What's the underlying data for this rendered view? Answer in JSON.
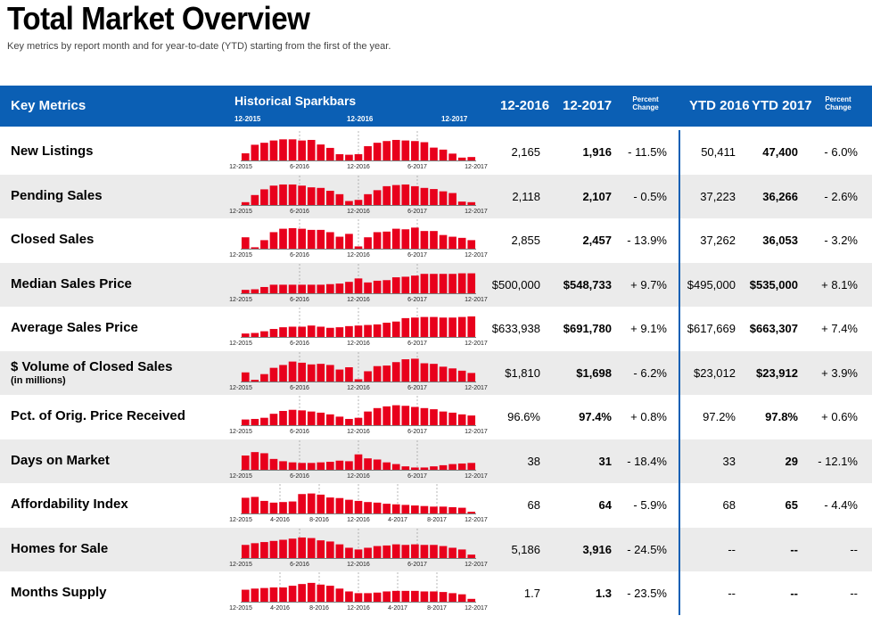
{
  "page": {
    "title": "Total Market Overview",
    "subtitle": "Key metrics by report month and for year-to-date (YTD) starting from the first of the year."
  },
  "header": {
    "key_metrics": "Key Metrics",
    "sparkbars": "Historical Sparkbars",
    "spark_labels": [
      "12-2015",
      "12-2016",
      "12-2017"
    ],
    "col_a": "12-2016",
    "col_b": "12-2017",
    "pct_line1": "Percent",
    "pct_line2": "Change",
    "ytd_a": "YTD 2016",
    "ytd_b": "YTD 2017",
    "ytd_pct_line1": "Percent",
    "ytd_pct_line2": "Change"
  },
  "colors": {
    "header_bg": "#0b5fb4",
    "bar": "#e8001c",
    "alt_row": "#ebebeb"
  },
  "axis_labels": {
    "standard": [
      "12-2015",
      "6-2016",
      "12-2016",
      "6-2017",
      "12-2017"
    ],
    "extended": [
      "12-2015",
      "4-2016",
      "8-2016",
      "12-2016",
      "4-2017",
      "8-2017",
      "12-2017"
    ]
  },
  "rows": [
    {
      "name": "New Listings",
      "sub": "",
      "v2016": "2,165",
      "v2017": "1,916",
      "pct": "- 11.5%",
      "ytd2016": "50,411",
      "ytd2017": "47,400",
      "ytdpct": "- 6.0%",
      "axis": "standard",
      "bars": [
        0.25,
        0.55,
        0.62,
        0.7,
        0.74,
        0.74,
        0.7,
        0.72,
        0.56,
        0.44,
        0.22,
        0.2,
        0.22,
        0.5,
        0.62,
        0.68,
        0.72,
        0.7,
        0.68,
        0.64,
        0.45,
        0.38,
        0.24,
        0.1,
        0.12
      ]
    },
    {
      "name": "Pending Sales",
      "sub": "",
      "v2016": "2,118",
      "v2017": "2,107",
      "pct": "- 0.5%",
      "ytd2016": "37,223",
      "ytd2017": "36,266",
      "ytdpct": "- 2.6%",
      "axis": "standard",
      "bars": [
        0.1,
        0.35,
        0.55,
        0.68,
        0.72,
        0.72,
        0.68,
        0.62,
        0.6,
        0.5,
        0.38,
        0.14,
        0.18,
        0.38,
        0.52,
        0.66,
        0.7,
        0.72,
        0.66,
        0.6,
        0.56,
        0.48,
        0.42,
        0.12,
        0.1
      ]
    },
    {
      "name": "Closed Sales",
      "sub": "",
      "v2016": "2,855",
      "v2017": "2,457",
      "pct": "- 13.9%",
      "ytd2016": "37,262",
      "ytd2017": "36,053",
      "ytdpct": "- 3.2%",
      "axis": "standard",
      "bars": [
        0.4,
        0.05,
        0.3,
        0.58,
        0.7,
        0.72,
        0.7,
        0.66,
        0.66,
        0.58,
        0.42,
        0.52,
        0.08,
        0.4,
        0.58,
        0.6,
        0.7,
        0.68,
        0.74,
        0.62,
        0.62,
        0.48,
        0.42,
        0.38,
        0.3
      ]
    },
    {
      "name": "Median Sales Price",
      "sub": "",
      "v2016": "$500,000",
      "v2017": "$548,733",
      "pct": "+ 9.7%",
      "ytd2016": "$495,000",
      "ytd2017": "$535,000",
      "ytdpct": "+ 8.1%",
      "axis": "standard",
      "bars": [
        0.12,
        0.14,
        0.22,
        0.3,
        0.3,
        0.3,
        0.3,
        0.3,
        0.3,
        0.32,
        0.34,
        0.4,
        0.52,
        0.38,
        0.44,
        0.46,
        0.56,
        0.58,
        0.62,
        0.68,
        0.68,
        0.68,
        0.68,
        0.7,
        0.7
      ]
    },
    {
      "name": "Average Sales Price",
      "sub": "",
      "v2016": "$633,938",
      "v2017": "$691,780",
      "pct": "+ 9.1%",
      "ytd2016": "$617,669",
      "ytd2017": "$663,307",
      "ytdpct": "+ 7.4%",
      "axis": "standard",
      "bars": [
        0.12,
        0.14,
        0.2,
        0.28,
        0.34,
        0.36,
        0.36,
        0.4,
        0.36,
        0.32,
        0.34,
        0.38,
        0.4,
        0.42,
        0.44,
        0.5,
        0.54,
        0.66,
        0.68,
        0.7,
        0.7,
        0.68,
        0.68,
        0.7,
        0.72
      ]
    },
    {
      "name": "$ Volume of Closed Sales",
      "sub": "(in millions)",
      "v2016": "$1,810",
      "v2017": "$1,698",
      "pct": "- 6.2%",
      "ytd2016": "$23,012",
      "ytd2017": "$23,912",
      "ytdpct": "+ 3.9%",
      "axis": "standard",
      "bars": [
        0.32,
        0.06,
        0.26,
        0.48,
        0.58,
        0.7,
        0.66,
        0.6,
        0.62,
        0.58,
        0.42,
        0.5,
        0.08,
        0.36,
        0.54,
        0.56,
        0.68,
        0.78,
        0.8,
        0.64,
        0.62,
        0.52,
        0.46,
        0.38,
        0.3
      ]
    },
    {
      "name": "Pct. of Orig. Price Received",
      "sub": "",
      "v2016": "96.6%",
      "v2017": "97.4%",
      "pct": "+ 0.8%",
      "ytd2016": "97.2%",
      "ytd2017": "97.8%",
      "ytdpct": "+ 0.6%",
      "axis": "standard",
      "bars": [
        0.2,
        0.22,
        0.26,
        0.4,
        0.5,
        0.54,
        0.52,
        0.48,
        0.44,
        0.38,
        0.3,
        0.22,
        0.26,
        0.48,
        0.6,
        0.66,
        0.7,
        0.68,
        0.64,
        0.6,
        0.56,
        0.48,
        0.44,
        0.38,
        0.34
      ]
    },
    {
      "name": "Days on Market",
      "sub": "",
      "v2016": "38",
      "v2017": "31",
      "pct": "- 18.4%",
      "ytd2016": "33",
      "ytd2017": "29",
      "ytdpct": "- 12.1%",
      "axis": "standard",
      "bars": [
        0.5,
        0.62,
        0.58,
        0.38,
        0.3,
        0.26,
        0.24,
        0.24,
        0.26,
        0.28,
        0.32,
        0.3,
        0.54,
        0.4,
        0.36,
        0.26,
        0.2,
        0.12,
        0.08,
        0.08,
        0.12,
        0.16,
        0.2,
        0.22,
        0.24
      ]
    },
    {
      "name": "Affordability Index",
      "sub": "",
      "v2016": "68",
      "v2017": "64",
      "pct": "- 5.9%",
      "ytd2016": "68",
      "ytd2017": "65",
      "ytdpct": "- 4.4%",
      "axis": "extended",
      "bars": [
        0.55,
        0.58,
        0.44,
        0.38,
        0.4,
        0.42,
        0.68,
        0.7,
        0.66,
        0.56,
        0.54,
        0.48,
        0.44,
        0.4,
        0.38,
        0.34,
        0.32,
        0.3,
        0.28,
        0.26,
        0.24,
        0.24,
        0.22,
        0.2,
        0.06
      ]
    },
    {
      "name": "Homes for Sale",
      "sub": "",
      "v2016": "5,186",
      "v2017": "3,916",
      "pct": "- 24.5%",
      "ytd2016": "--",
      "ytd2017": "--",
      "ytdpct": "--",
      "axis": "standard",
      "bars": [
        0.46,
        0.52,
        0.56,
        0.6,
        0.64,
        0.68,
        0.72,
        0.7,
        0.62,
        0.58,
        0.48,
        0.36,
        0.3,
        0.36,
        0.42,
        0.44,
        0.48,
        0.46,
        0.48,
        0.46,
        0.46,
        0.42,
        0.36,
        0.3,
        0.12
      ]
    },
    {
      "name": "Months Supply",
      "sub": "",
      "v2016": "1.7",
      "v2017": "1.3",
      "pct": "- 23.5%",
      "ytd2016": "--",
      "ytd2017": "--",
      "ytdpct": "--",
      "axis": "extended",
      "bars": [
        0.42,
        0.46,
        0.48,
        0.5,
        0.5,
        0.56,
        0.62,
        0.66,
        0.6,
        0.56,
        0.46,
        0.36,
        0.3,
        0.3,
        0.32,
        0.36,
        0.38,
        0.38,
        0.38,
        0.36,
        0.36,
        0.34,
        0.3,
        0.26,
        0.1
      ]
    }
  ]
}
